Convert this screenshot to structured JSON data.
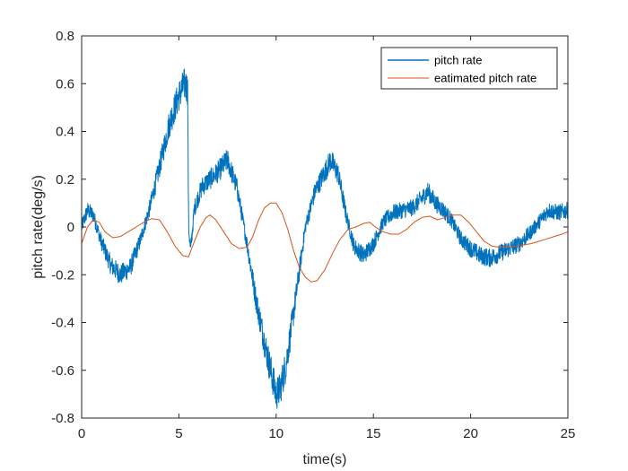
{
  "chart_data": {
    "type": "line",
    "title": "",
    "xlabel": "time(s)",
    "ylabel": "pitch rate(deg/s)",
    "xlim": [
      0,
      25
    ],
    "ylim": [
      -0.8,
      0.8
    ],
    "xticks": [
      0,
      5,
      10,
      15,
      20,
      25
    ],
    "yticks": [
      -0.8,
      -0.6,
      -0.4,
      -0.2,
      0,
      0.2,
      0.4,
      0.6,
      0.8
    ],
    "grid": false,
    "legend_position": "top-right",
    "series": [
      {
        "name": "pitch rate",
        "color": "#0072BD",
        "noisy": true,
        "x": [
          0,
          0.3,
          0.6,
          1.0,
          1.5,
          2.0,
          2.5,
          3.0,
          3.5,
          4.0,
          4.5,
          5.0,
          5.3,
          5.45,
          5.5,
          5.6,
          5.8,
          6.2,
          6.6,
          7.0,
          7.5,
          8.0,
          8.5,
          9.0,
          9.5,
          10.0,
          10.2,
          10.5,
          11.0,
          11.5,
          12.0,
          12.5,
          12.8,
          13.2,
          13.6,
          14.0,
          14.5,
          15.0,
          15.5,
          16.0,
          16.5,
          17.0,
          17.5,
          17.8,
          18.2,
          18.6,
          19.0,
          19.5,
          20.0,
          20.5,
          21.0,
          21.5,
          22.0,
          22.5,
          23.0,
          23.5,
          24.0,
          24.5,
          25.0
        ],
        "values": [
          0.0,
          0.07,
          0.05,
          -0.06,
          -0.16,
          -0.2,
          -0.17,
          -0.06,
          0.08,
          0.25,
          0.43,
          0.55,
          0.6,
          0.58,
          0.0,
          -0.1,
          0.08,
          0.17,
          0.2,
          0.23,
          0.28,
          0.16,
          -0.07,
          -0.32,
          -0.52,
          -0.7,
          -0.68,
          -0.58,
          -0.3,
          0.0,
          0.15,
          0.23,
          0.28,
          0.22,
          0.05,
          -0.08,
          -0.12,
          -0.07,
          0.02,
          0.06,
          0.07,
          0.08,
          0.12,
          0.15,
          0.1,
          0.07,
          0.03,
          -0.05,
          -0.09,
          -0.12,
          -0.13,
          -0.11,
          -0.09,
          -0.07,
          -0.03,
          0.02,
          0.07,
          0.06,
          0.07
        ]
      },
      {
        "name": "eatimated pitch rate",
        "color": "#D95319",
        "noisy": false,
        "x": [
          0,
          0.3,
          0.6,
          0.9,
          1.2,
          1.6,
          2.0,
          2.4,
          2.8,
          3.2,
          3.6,
          4.0,
          4.4,
          4.8,
          5.2,
          5.5,
          5.8,
          6.1,
          6.4,
          6.6,
          6.9,
          7.3,
          7.7,
          8.1,
          8.5,
          8.8,
          9.1,
          9.4,
          9.7,
          10.0,
          10.3,
          10.6,
          10.9,
          11.2,
          11.5,
          11.8,
          12.1,
          12.5,
          12.9,
          13.3,
          13.7,
          14.1,
          14.5,
          14.8,
          15.1,
          15.5,
          15.9,
          16.3,
          16.7,
          17.1,
          17.5,
          17.9,
          18.3,
          18.7,
          19.1,
          19.5,
          19.9,
          20.3,
          20.7,
          21.1,
          21.5,
          21.9,
          22.3,
          22.7,
          23.1,
          23.5,
          23.9,
          24.3,
          24.7,
          25.0
        ],
        "values": [
          -0.07,
          0.0,
          0.03,
          0.02,
          -0.02,
          -0.045,
          -0.04,
          -0.02,
          0.0,
          0.02,
          0.035,
          0.03,
          -0.02,
          -0.08,
          -0.12,
          -0.125,
          -0.06,
          0.0,
          0.04,
          0.05,
          0.03,
          -0.02,
          -0.07,
          -0.09,
          -0.085,
          -0.04,
          0.03,
          0.08,
          0.1,
          0.1,
          0.06,
          -0.01,
          -0.1,
          -0.17,
          -0.21,
          -0.23,
          -0.225,
          -0.18,
          -0.11,
          -0.05,
          -0.01,
          0.0,
          0.015,
          0.02,
          0.0,
          -0.02,
          -0.03,
          -0.03,
          -0.01,
          0.02,
          0.04,
          0.045,
          0.03,
          0.04,
          0.05,
          0.05,
          0.02,
          -0.02,
          -0.06,
          -0.08,
          -0.085,
          -0.085,
          -0.08,
          -0.075,
          -0.07,
          -0.06,
          -0.05,
          -0.04,
          -0.03,
          -0.02
        ]
      }
    ]
  }
}
